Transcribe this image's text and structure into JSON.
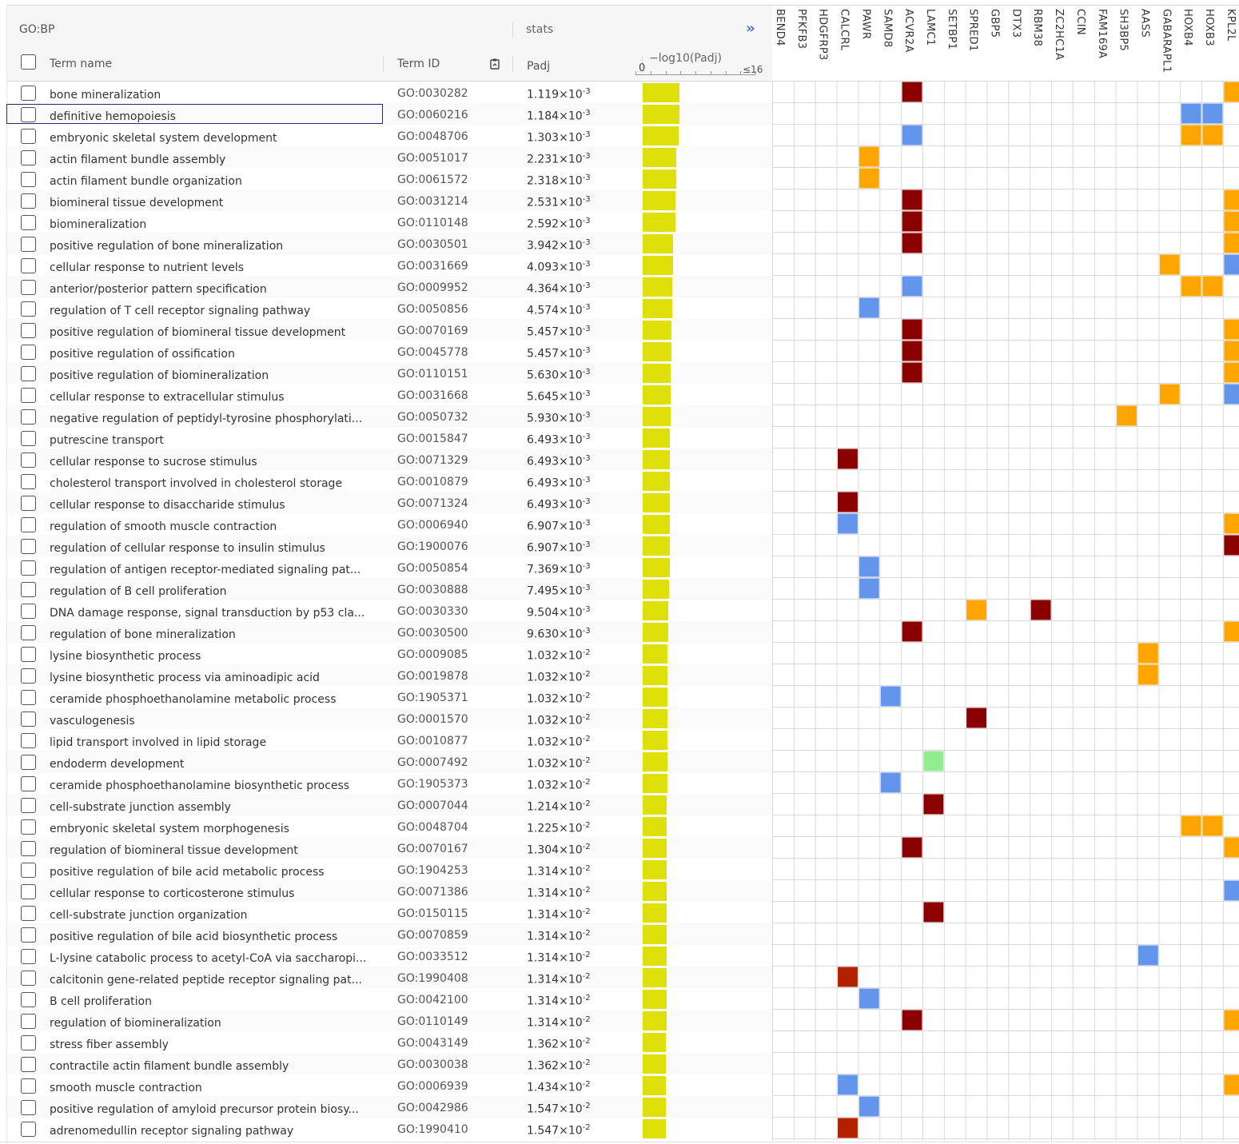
{
  "header": {
    "source": "GO:BP",
    "stats": "stats",
    "expand_glyph": "››",
    "col_term": "Term name",
    "col_id": "Term ID",
    "col_padj": "Padj",
    "col_log": "−log10(Padj)",
    "axis_min": "0",
    "axis_max": "≤16",
    "sort_icon": "clipboard-sort-icon"
  },
  "genes": [
    "BEND4",
    "PFKFB3",
    "HDGFRP3",
    "CALCRL",
    "PAWR",
    "SAMD8",
    "ACVR2A",
    "LAMC1",
    "SETBP1",
    "SPRED1",
    "GBP5",
    "DTX3",
    "RBM38",
    "ZC2HC1A",
    "CCIN",
    "FAM169A",
    "SH3BP5",
    "AASS",
    "GABARAPL1",
    "HOXB4",
    "HOXB3",
    "KPL2L"
  ],
  "colors": {
    "bar": "#dfe00a",
    "dark_red": "#8b0000",
    "red": "#b22000",
    "blue": "#6495ed",
    "orange": "#ffa500",
    "green": "#90ee90",
    "grid_line": "#d9d9d9"
  },
  "focused_row": 1,
  "terms": [
    {
      "name": "bone mineralization",
      "id": "GO:0030282",
      "mant": "1.119",
      "exp": "-3",
      "log": 2.951
    },
    {
      "name": "definitive hemopoiesis",
      "id": "GO:0060216",
      "mant": "1.184",
      "exp": "-3",
      "log": 2.927
    },
    {
      "name": "embryonic skeletal system development",
      "id": "GO:0048706",
      "mant": "1.303",
      "exp": "-3",
      "log": 2.885
    },
    {
      "name": "actin filament bundle assembly",
      "id": "GO:0051017",
      "mant": "2.231",
      "exp": "-3",
      "log": 2.652
    },
    {
      "name": "actin filament bundle organization",
      "id": "GO:0061572",
      "mant": "2.318",
      "exp": "-3",
      "log": 2.635
    },
    {
      "name": "biomineral tissue development",
      "id": "GO:0031214",
      "mant": "2.531",
      "exp": "-3",
      "log": 2.597
    },
    {
      "name": "biomineralization",
      "id": "GO:0110148",
      "mant": "2.592",
      "exp": "-3",
      "log": 2.586
    },
    {
      "name": "positive regulation of bone mineralization",
      "id": "GO:0030501",
      "mant": "3.942",
      "exp": "-3",
      "log": 2.404
    },
    {
      "name": "cellular response to nutrient levels",
      "id": "GO:0031669",
      "mant": "4.093",
      "exp": "-3",
      "log": 2.388
    },
    {
      "name": "anterior/posterior pattern specification",
      "id": "GO:0009952",
      "mant": "4.364",
      "exp": "-3",
      "log": 2.36
    },
    {
      "name": "regulation of T cell receptor signaling pathway",
      "id": "GO:0050856",
      "mant": "4.574",
      "exp": "-3",
      "log": 2.34
    },
    {
      "name": "positive regulation of biomineral tissue development",
      "id": "GO:0070169",
      "mant": "5.457",
      "exp": "-3",
      "log": 2.263
    },
    {
      "name": "positive regulation of ossification",
      "id": "GO:0045778",
      "mant": "5.457",
      "exp": "-3",
      "log": 2.263
    },
    {
      "name": "positive regulation of biomineralization",
      "id": "GO:0110151",
      "mant": "5.630",
      "exp": "-3",
      "log": 2.25
    },
    {
      "name": "cellular response to extracellular stimulus",
      "id": "GO:0031668",
      "mant": "5.645",
      "exp": "-3",
      "log": 2.248
    },
    {
      "name": "negative regulation of peptidyl-tyrosine phosphorylati...",
      "id": "GO:0050732",
      "mant": "5.930",
      "exp": "-3",
      "log": 2.227
    },
    {
      "name": "putrescine transport",
      "id": "GO:0015847",
      "mant": "6.493",
      "exp": "-3",
      "log": 2.188
    },
    {
      "name": "cellular response to sucrose stimulus",
      "id": "GO:0071329",
      "mant": "6.493",
      "exp": "-3",
      "log": 2.188
    },
    {
      "name": "cholesterol transport involved in cholesterol storage",
      "id": "GO:0010879",
      "mant": "6.493",
      "exp": "-3",
      "log": 2.188
    },
    {
      "name": "cellular response to disaccharide stimulus",
      "id": "GO:0071324",
      "mant": "6.493",
      "exp": "-3",
      "log": 2.188
    },
    {
      "name": "regulation of smooth muscle contraction",
      "id": "GO:0006940",
      "mant": "6.907",
      "exp": "-3",
      "log": 2.161
    },
    {
      "name": "regulation of cellular response to insulin stimulus",
      "id": "GO:1900076",
      "mant": "6.907",
      "exp": "-3",
      "log": 2.161
    },
    {
      "name": "regulation of antigen receptor-mediated signaling pat...",
      "id": "GO:0050854",
      "mant": "7.369",
      "exp": "-3",
      "log": 2.133
    },
    {
      "name": "regulation of B cell proliferation",
      "id": "GO:0030888",
      "mant": "7.495",
      "exp": "-3",
      "log": 2.125
    },
    {
      "name": "DNA damage response, signal transduction by p53 cla...",
      "id": "GO:0030330",
      "mant": "9.504",
      "exp": "-3",
      "log": 2.022
    },
    {
      "name": "regulation of bone mineralization",
      "id": "GO:0030500",
      "mant": "9.630",
      "exp": "-3",
      "log": 2.016
    },
    {
      "name": "lysine biosynthetic process",
      "id": "GO:0009085",
      "mant": "1.032",
      "exp": "-2",
      "log": 1.986
    },
    {
      "name": "lysine biosynthetic process via aminoadipic acid",
      "id": "GO:0019878",
      "mant": "1.032",
      "exp": "-2",
      "log": 1.986
    },
    {
      "name": "ceramide phosphoethanolamine metabolic process",
      "id": "GO:1905371",
      "mant": "1.032",
      "exp": "-2",
      "log": 1.986
    },
    {
      "name": "vasculogenesis",
      "id": "GO:0001570",
      "mant": "1.032",
      "exp": "-2",
      "log": 1.986
    },
    {
      "name": "lipid transport involved in lipid storage",
      "id": "GO:0010877",
      "mant": "1.032",
      "exp": "-2",
      "log": 1.986
    },
    {
      "name": "endoderm development",
      "id": "GO:0007492",
      "mant": "1.032",
      "exp": "-2",
      "log": 1.986
    },
    {
      "name": "ceramide phosphoethanolamine biosynthetic process",
      "id": "GO:1905373",
      "mant": "1.032",
      "exp": "-2",
      "log": 1.986
    },
    {
      "name": "cell-substrate junction assembly",
      "id": "GO:0007044",
      "mant": "1.214",
      "exp": "-2",
      "log": 1.916
    },
    {
      "name": "embryonic skeletal system morphogenesis",
      "id": "GO:0048704",
      "mant": "1.225",
      "exp": "-2",
      "log": 1.912
    },
    {
      "name": "regulation of biomineral tissue development",
      "id": "GO:0070167",
      "mant": "1.304",
      "exp": "-2",
      "log": 1.885
    },
    {
      "name": "positive regulation of bile acid metabolic process",
      "id": "GO:1904253",
      "mant": "1.314",
      "exp": "-2",
      "log": 1.881
    },
    {
      "name": "cellular response to corticosterone stimulus",
      "id": "GO:0071386",
      "mant": "1.314",
      "exp": "-2",
      "log": 1.881
    },
    {
      "name": "cell-substrate junction organization",
      "id": "GO:0150115",
      "mant": "1.314",
      "exp": "-2",
      "log": 1.881
    },
    {
      "name": "positive regulation of bile acid biosynthetic process",
      "id": "GO:0070859",
      "mant": "1.314",
      "exp": "-2",
      "log": 1.881
    },
    {
      "name": "L-lysine catabolic process to acetyl-CoA via saccharopi...",
      "id": "GO:0033512",
      "mant": "1.314",
      "exp": "-2",
      "log": 1.881
    },
    {
      "name": "calcitonin gene-related peptide receptor signaling pat...",
      "id": "GO:1990408",
      "mant": "1.314",
      "exp": "-2",
      "log": 1.881
    },
    {
      "name": "B cell proliferation",
      "id": "GO:0042100",
      "mant": "1.314",
      "exp": "-2",
      "log": 1.881
    },
    {
      "name": "regulation of biomineralization",
      "id": "GO:0110149",
      "mant": "1.314",
      "exp": "-2",
      "log": 1.881
    },
    {
      "name": "stress fiber assembly",
      "id": "GO:0043149",
      "mant": "1.362",
      "exp": "-2",
      "log": 1.866
    },
    {
      "name": "contractile actin filament bundle assembly",
      "id": "GO:0030038",
      "mant": "1.362",
      "exp": "-2",
      "log": 1.866
    },
    {
      "name": "smooth muscle contraction",
      "id": "GO:0006939",
      "mant": "1.434",
      "exp": "-2",
      "log": 1.843
    },
    {
      "name": "positive regulation of amyloid precursor protein biosy...",
      "id": "GO:0042986",
      "mant": "1.547",
      "exp": "-2",
      "log": 1.81
    },
    {
      "name": "adrenomedullin receptor signaling pathway",
      "id": "GO:1990410",
      "mant": "1.547",
      "exp": "-2",
      "log": 1.81
    }
  ],
  "cells": [
    [
      0,
      6,
      "dark_red"
    ],
    [
      0,
      21,
      "orange"
    ],
    [
      1,
      19,
      "blue"
    ],
    [
      1,
      20,
      "blue"
    ],
    [
      2,
      6,
      "blue"
    ],
    [
      2,
      19,
      "orange"
    ],
    [
      2,
      20,
      "orange"
    ],
    [
      3,
      4,
      "orange"
    ],
    [
      4,
      4,
      "orange"
    ],
    [
      5,
      6,
      "dark_red"
    ],
    [
      5,
      21,
      "orange"
    ],
    [
      6,
      6,
      "dark_red"
    ],
    [
      6,
      21,
      "orange"
    ],
    [
      7,
      6,
      "dark_red"
    ],
    [
      7,
      21,
      "orange"
    ],
    [
      8,
      18,
      "orange"
    ],
    [
      8,
      21,
      "blue"
    ],
    [
      9,
      6,
      "blue"
    ],
    [
      9,
      19,
      "orange"
    ],
    [
      9,
      20,
      "orange"
    ],
    [
      10,
      4,
      "blue"
    ],
    [
      11,
      6,
      "dark_red"
    ],
    [
      11,
      21,
      "orange"
    ],
    [
      12,
      6,
      "dark_red"
    ],
    [
      12,
      21,
      "orange"
    ],
    [
      13,
      6,
      "dark_red"
    ],
    [
      13,
      21,
      "orange"
    ],
    [
      14,
      18,
      "orange"
    ],
    [
      14,
      21,
      "blue"
    ],
    [
      15,
      16,
      "orange"
    ],
    [
      17,
      3,
      "dark_red"
    ],
    [
      19,
      3,
      "dark_red"
    ],
    [
      20,
      3,
      "blue"
    ],
    [
      20,
      21,
      "orange"
    ],
    [
      21,
      21,
      "dark_red"
    ],
    [
      22,
      4,
      "blue"
    ],
    [
      23,
      4,
      "blue"
    ],
    [
      24,
      9,
      "orange"
    ],
    [
      24,
      12,
      "dark_red"
    ],
    [
      25,
      6,
      "dark_red"
    ],
    [
      25,
      21,
      "orange"
    ],
    [
      26,
      17,
      "orange"
    ],
    [
      27,
      17,
      "orange"
    ],
    [
      28,
      5,
      "blue"
    ],
    [
      29,
      9,
      "dark_red"
    ],
    [
      31,
      7,
      "green"
    ],
    [
      32,
      5,
      "blue"
    ],
    [
      33,
      7,
      "dark_red"
    ],
    [
      34,
      19,
      "orange"
    ],
    [
      34,
      20,
      "orange"
    ],
    [
      35,
      6,
      "dark_red"
    ],
    [
      35,
      21,
      "orange"
    ],
    [
      37,
      21,
      "blue"
    ],
    [
      38,
      7,
      "dark_red"
    ],
    [
      40,
      17,
      "blue"
    ],
    [
      41,
      3,
      "red"
    ],
    [
      42,
      4,
      "blue"
    ],
    [
      43,
      6,
      "dark_red"
    ],
    [
      43,
      21,
      "orange"
    ],
    [
      46,
      3,
      "blue"
    ],
    [
      46,
      21,
      "orange"
    ],
    [
      47,
      4,
      "blue"
    ],
    [
      48,
      3,
      "red"
    ]
  ]
}
